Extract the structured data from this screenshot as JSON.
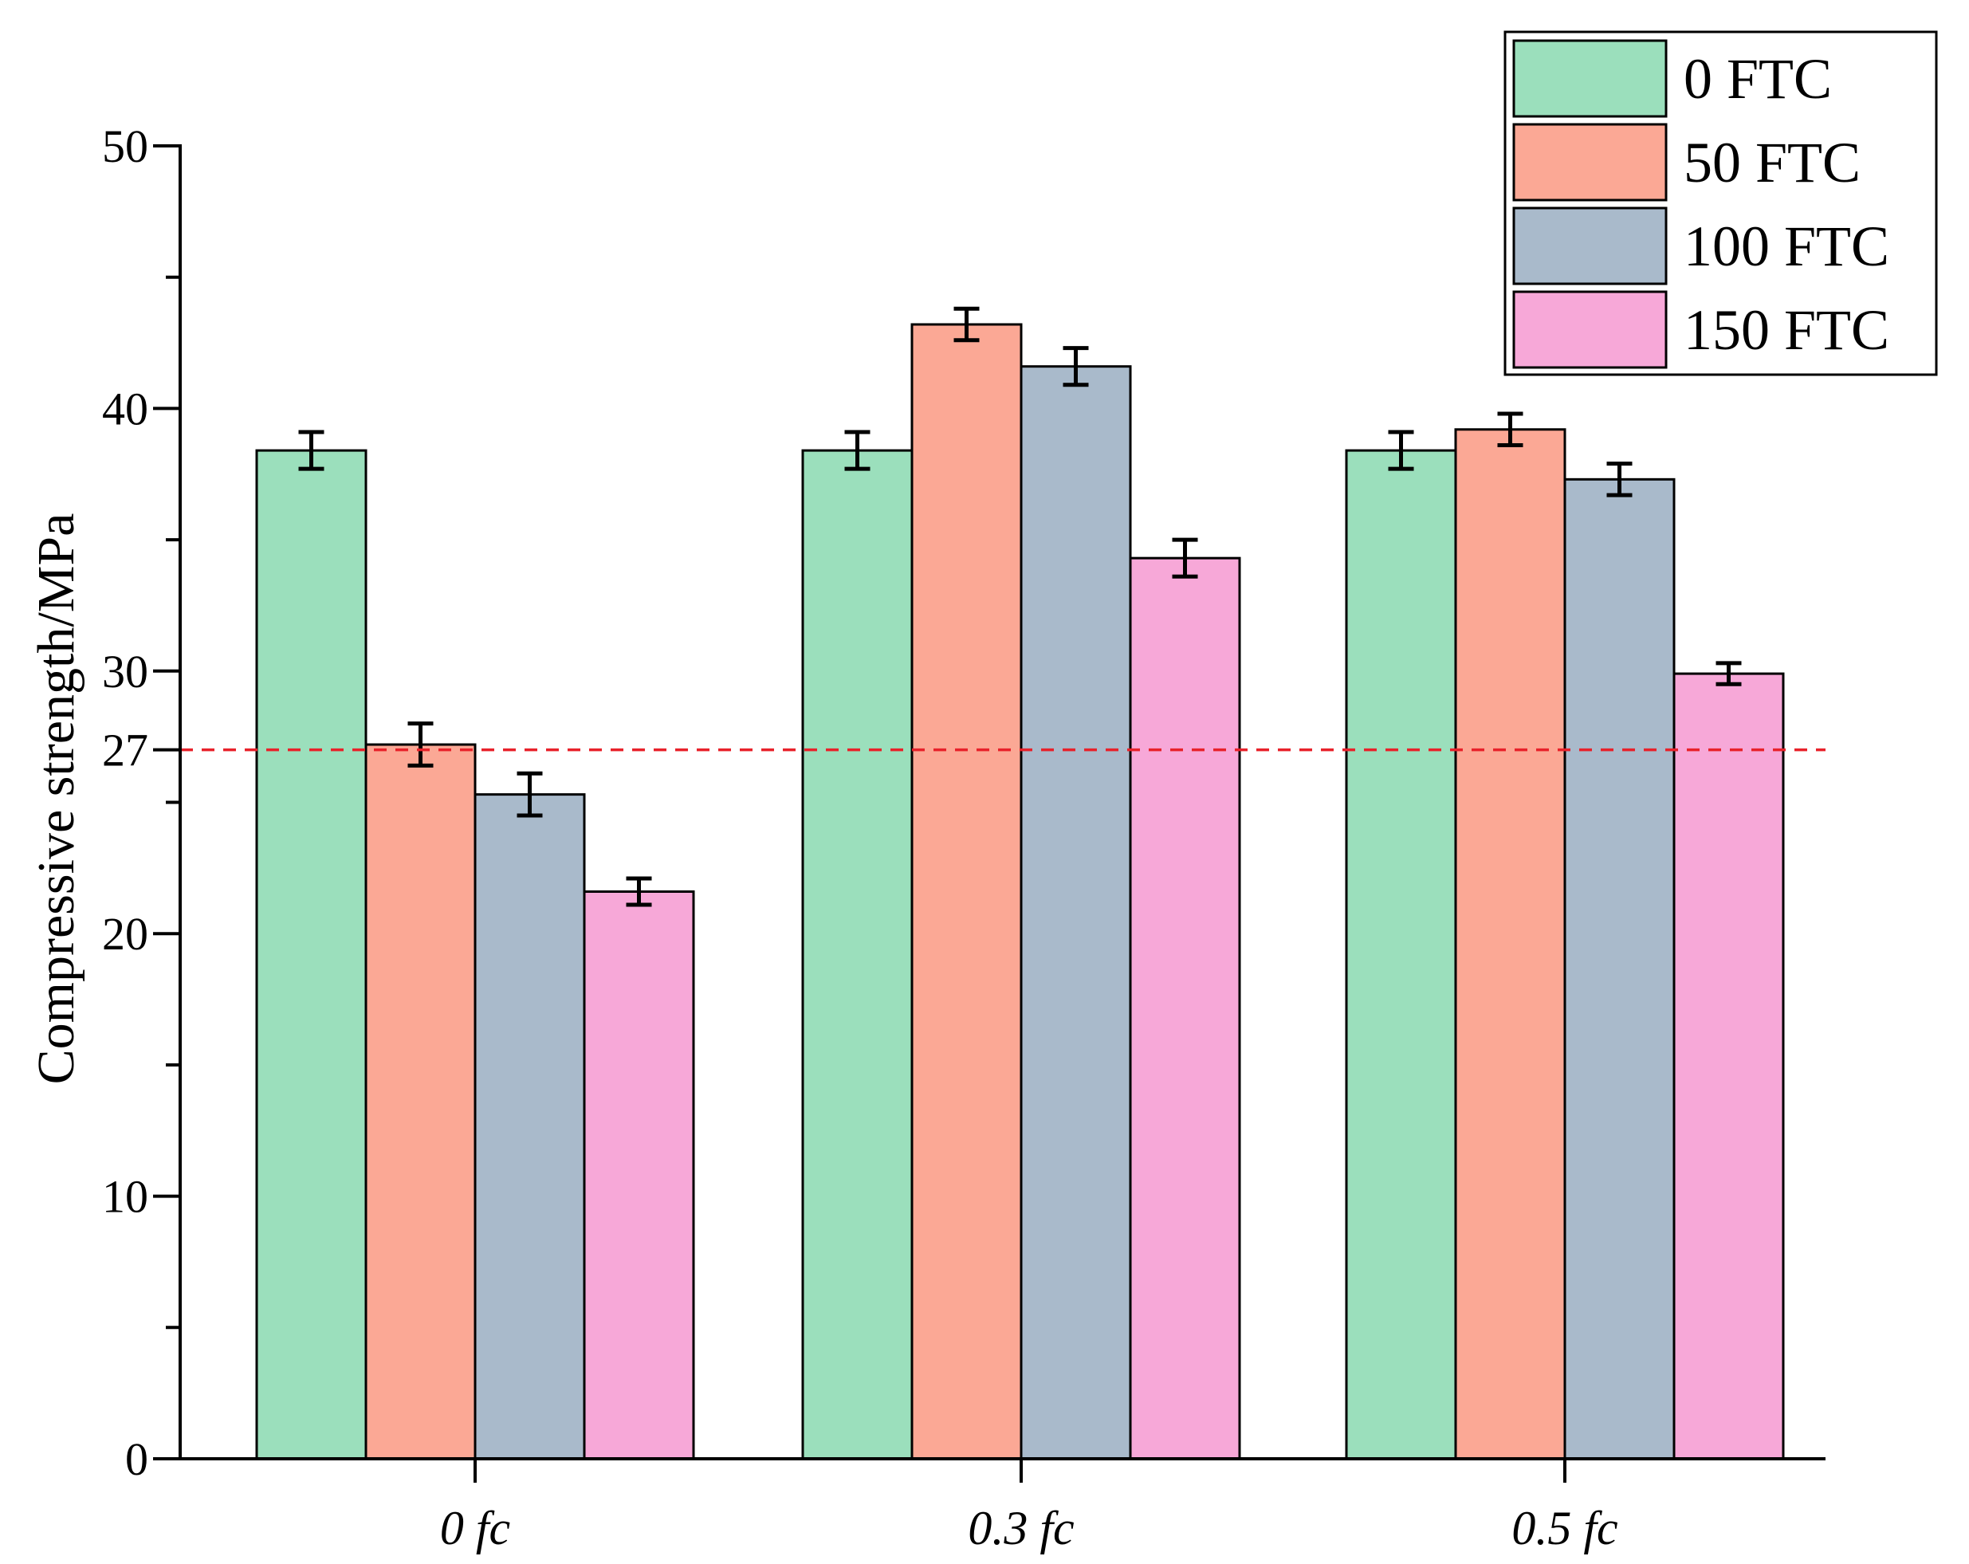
{
  "chart_data": {
    "type": "bar",
    "title": "",
    "xlabel": "",
    "ylabel": "Compressive strength/MPa",
    "ylim": [
      0,
      50
    ],
    "yticks": [
      0,
      10,
      20,
      27,
      30,
      40,
      50
    ],
    "ytick_labels": [
      "0",
      "10",
      "20",
      "27",
      "30",
      "40",
      "50"
    ],
    "minor_yticks": [
      5,
      15,
      25,
      35,
      45
    ],
    "categories": [
      "0 fc",
      "0.3 fc",
      "0.5 fc"
    ],
    "category_labels": [
      {
        "number": "0",
        "unit": "fc"
      },
      {
        "number": "0.3",
        "unit": "fc"
      },
      {
        "number": "0.5",
        "unit": "fc"
      }
    ],
    "series": [
      {
        "name": "0 FTC",
        "color": "#9bdfbc",
        "values": [
          38.4,
          38.4,
          38.4
        ],
        "errors": [
          0.7,
          0.7,
          0.7
        ]
      },
      {
        "name": "50 FTC",
        "color": "#fba895",
        "values": [
          27.2,
          43.2,
          39.2
        ],
        "errors": [
          0.8,
          0.6,
          0.6
        ]
      },
      {
        "name": "100 FTC",
        "color": "#a9bacb",
        "values": [
          25.3,
          41.6,
          37.3
        ],
        "errors": [
          0.8,
          0.7,
          0.6
        ]
      },
      {
        "name": "150 FTC",
        "color": "#f7a8d8",
        "values": [
          21.6,
          34.3,
          29.9
        ],
        "errors": [
          0.5,
          0.7,
          0.4
        ]
      }
    ],
    "reference_line": {
      "value": 27,
      "color": "#e8212a",
      "style": "dashed"
    },
    "legend_position": "top-right",
    "grid": false
  }
}
